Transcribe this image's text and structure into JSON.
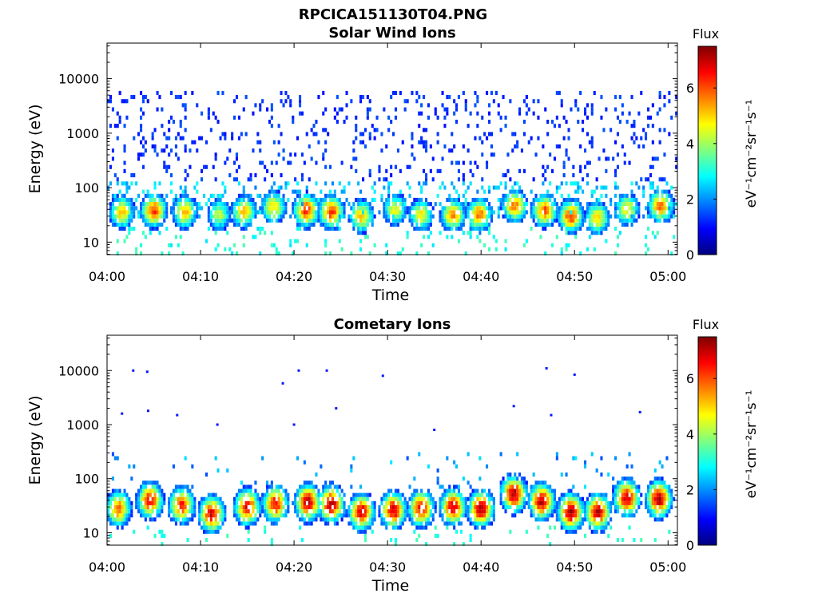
{
  "figure_title": "RPCICA151130T04.PNG",
  "colormap": [
    "#00007f",
    "#0000ff",
    "#007fff",
    "#00ffff",
    "#7fff7f",
    "#ffff00",
    "#ff7f00",
    "#ff0000",
    "#7f0000"
  ],
  "chart_data": [
    {
      "type": "heatmap",
      "title": "Solar Wind Ions",
      "xlabel": "Time",
      "ylabel": "Energy (eV)",
      "x_ticks": [
        "04:00",
        "04:10",
        "04:20",
        "04:30",
        "04:40",
        "04:50",
        "05:00"
      ],
      "x_tick_minutes": [
        0,
        10,
        20,
        30,
        40,
        50,
        60
      ],
      "xlim_minutes": [
        0,
        61
      ],
      "y_scale": "log",
      "ylim": [
        5.9,
        45000
      ],
      "y_ticks": [
        "10",
        "100",
        "1000",
        "10000"
      ],
      "y_tick_values": [
        10,
        100,
        1000,
        10000
      ],
      "colorbar": {
        "title": "Flux",
        "label": "eV⁻¹cm⁻²sr⁻¹s⁻¹",
        "ticks": [
          "0",
          "2",
          "4",
          "6"
        ],
        "tick_values": [
          0,
          2,
          4,
          6
        ],
        "range": [
          0,
          7.5
        ]
      },
      "bursts": [
        {
          "t": 1.6,
          "e": 36,
          "flux": 5.2
        },
        {
          "t": 5.0,
          "e": 38,
          "flux": 6.2
        },
        {
          "t": 8.3,
          "e": 36,
          "flux": 5.3
        },
        {
          "t": 12.0,
          "e": 32,
          "flux": 4.2
        },
        {
          "t": 14.6,
          "e": 36,
          "flux": 5.2
        },
        {
          "t": 17.8,
          "e": 44,
          "flux": 5.0
        },
        {
          "t": 21.3,
          "e": 38,
          "flux": 6.3
        },
        {
          "t": 24.0,
          "e": 36,
          "flux": 6.2
        },
        {
          "t": 27.2,
          "e": 30,
          "flux": 5.2
        },
        {
          "t": 30.8,
          "e": 40,
          "flux": 4.6
        },
        {
          "t": 33.6,
          "e": 32,
          "flux": 4.8
        },
        {
          "t": 37.0,
          "e": 32,
          "flux": 5.5
        },
        {
          "t": 39.8,
          "e": 32,
          "flux": 5.8
        },
        {
          "t": 43.6,
          "e": 46,
          "flux": 5.8
        },
        {
          "t": 46.8,
          "e": 38,
          "flux": 6.0
        },
        {
          "t": 49.6,
          "e": 30,
          "flux": 6.2
        },
        {
          "t": 52.4,
          "e": 28,
          "flux": 5.0
        },
        {
          "t": 55.6,
          "e": 40,
          "flux": 4.8
        },
        {
          "t": 59.2,
          "e": 46,
          "flux": 5.8
        }
      ]
    },
    {
      "type": "heatmap",
      "title": "Cometary Ions",
      "xlabel": "Time",
      "ylabel": "Energy (eV)",
      "x_ticks": [
        "04:00",
        "04:10",
        "04:20",
        "04:30",
        "04:40",
        "04:50",
        "05:00"
      ],
      "x_tick_minutes": [
        0,
        10,
        20,
        30,
        40,
        50,
        60
      ],
      "xlim_minutes": [
        0,
        61
      ],
      "y_scale": "log",
      "ylim": [
        5.9,
        45000
      ],
      "y_ticks": [
        "10",
        "100",
        "1000",
        "10000"
      ],
      "y_tick_values": [
        10,
        100,
        1000,
        10000
      ],
      "colorbar": {
        "title": "Flux",
        "label": "eV⁻¹cm⁻²sr⁻¹s⁻¹",
        "ticks": [
          "0",
          "2",
          "4",
          "6"
        ],
        "tick_values": [
          0,
          2,
          4,
          6
        ],
        "range": [
          0,
          7.5
        ]
      },
      "bursts": [
        {
          "t": 1.2,
          "e": 28,
          "flux": 5.8
        },
        {
          "t": 4.6,
          "e": 40,
          "flux": 6.6
        },
        {
          "t": 8.0,
          "e": 32,
          "flux": 6.4
        },
        {
          "t": 11.2,
          "e": 22,
          "flux": 6.8
        },
        {
          "t": 15.0,
          "e": 30,
          "flux": 6.8
        },
        {
          "t": 18.0,
          "e": 34,
          "flux": 6.6
        },
        {
          "t": 21.5,
          "e": 36,
          "flux": 7.2
        },
        {
          "t": 24.0,
          "e": 34,
          "flux": 7.2
        },
        {
          "t": 27.2,
          "e": 24,
          "flux": 7.0
        },
        {
          "t": 30.6,
          "e": 26,
          "flux": 7.0
        },
        {
          "t": 33.6,
          "e": 28,
          "flux": 6.6
        },
        {
          "t": 37.0,
          "e": 30,
          "flux": 6.8
        },
        {
          "t": 40.0,
          "e": 28,
          "flux": 7.2
        },
        {
          "t": 43.5,
          "e": 52,
          "flux": 7.2
        },
        {
          "t": 46.5,
          "e": 38,
          "flux": 7.1
        },
        {
          "t": 49.6,
          "e": 24,
          "flux": 7.3
        },
        {
          "t": 52.5,
          "e": 24,
          "flux": 7.0
        },
        {
          "t": 55.6,
          "e": 44,
          "flux": 7.0
        },
        {
          "t": 59.0,
          "e": 42,
          "flux": 7.2
        }
      ],
      "high_energy_points": [
        {
          "t": 2.8,
          "e": 10000
        },
        {
          "t": 4.3,
          "e": 9500
        },
        {
          "t": 1.6,
          "e": 1600
        },
        {
          "t": 4.4,
          "e": 1800
        },
        {
          "t": 7.5,
          "e": 1500
        },
        {
          "t": 11.8,
          "e": 1000
        },
        {
          "t": 18.8,
          "e": 5800
        },
        {
          "t": 20.5,
          "e": 10000
        },
        {
          "t": 23.5,
          "e": 10000
        },
        {
          "t": 24.5,
          "e": 2000
        },
        {
          "t": 29.5,
          "e": 8000
        },
        {
          "t": 43.5,
          "e": 2200
        },
        {
          "t": 47.0,
          "e": 11000
        },
        {
          "t": 50.0,
          "e": 8400
        },
        {
          "t": 47.5,
          "e": 1500
        },
        {
          "t": 57.0,
          "e": 1700
        },
        {
          "t": 35.0,
          "e": 800
        },
        {
          "t": 20.0,
          "e": 1000
        }
      ]
    }
  ]
}
